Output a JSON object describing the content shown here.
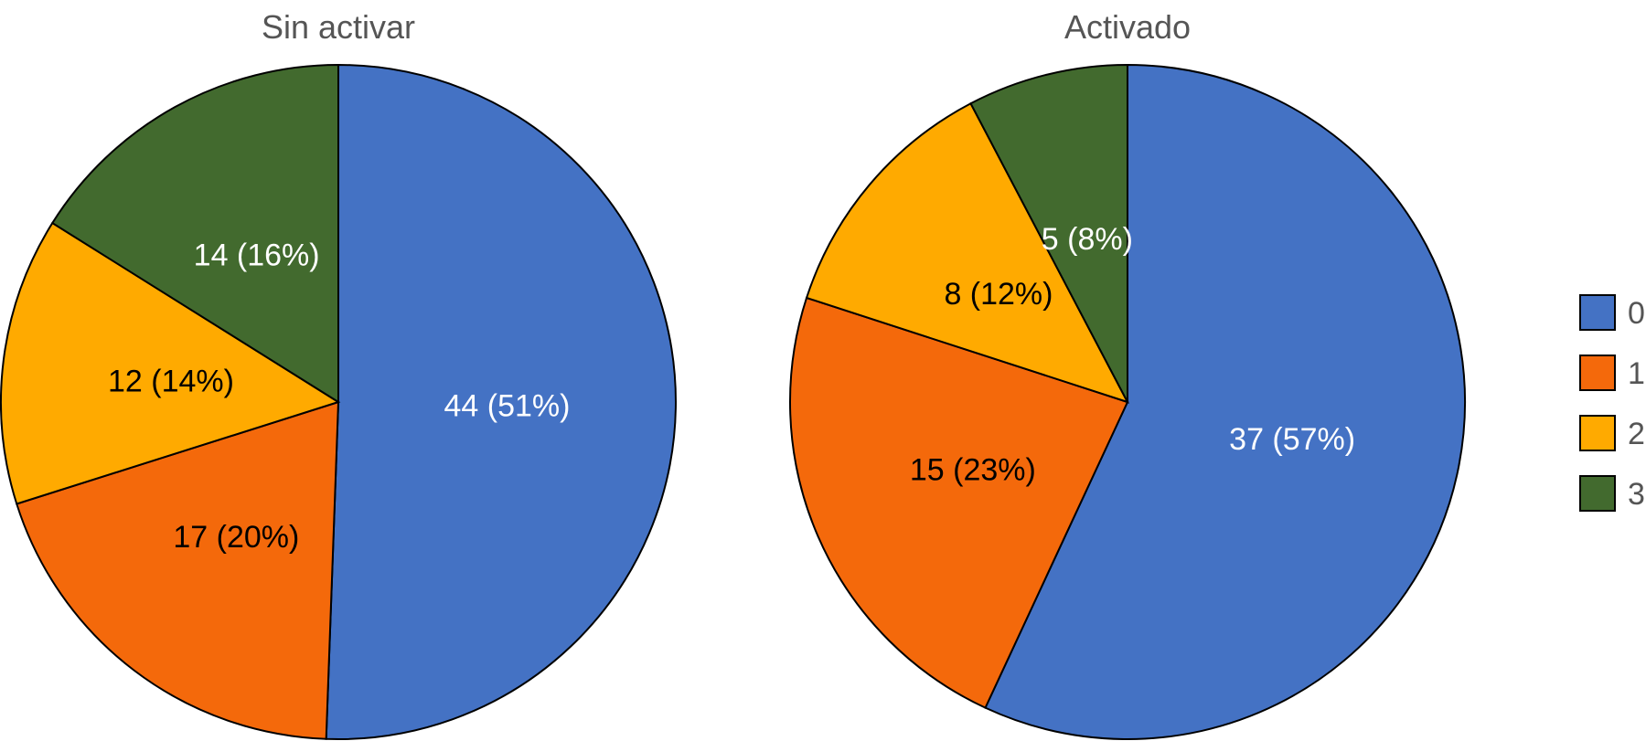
{
  "legend": {
    "items": [
      {
        "label": "0",
        "color": "#4472C4"
      },
      {
        "label": "1",
        "color": "#F4690B"
      },
      {
        "label": "2",
        "color": "#FFAA00"
      },
      {
        "label": "3",
        "color": "#426A2E"
      }
    ]
  },
  "chart_data": [
    {
      "type": "pie",
      "title": "Sin activar",
      "categories": [
        "0",
        "1",
        "2",
        "3"
      ],
      "values": [
        44,
        17,
        12,
        14
      ],
      "data_labels": [
        "44 (51%)",
        "17 (20%)",
        "12 (14%)",
        "14 (16%)"
      ],
      "label_colors": [
        "#ffffff",
        "#000000",
        "#000000",
        "#ffffff"
      ],
      "start": "top",
      "direction": "clockwise"
    },
    {
      "type": "pie",
      "title": "Activado",
      "categories": [
        "0",
        "1",
        "2",
        "3"
      ],
      "values": [
        37,
        15,
        8,
        5
      ],
      "data_labels": [
        "37 (57%)",
        "15 (23%)",
        "8 (12%)",
        "5 (8%)"
      ],
      "label_colors": [
        "#ffffff",
        "#000000",
        "#000000",
        "#ffffff"
      ],
      "start": "top",
      "direction": "clockwise"
    }
  ]
}
